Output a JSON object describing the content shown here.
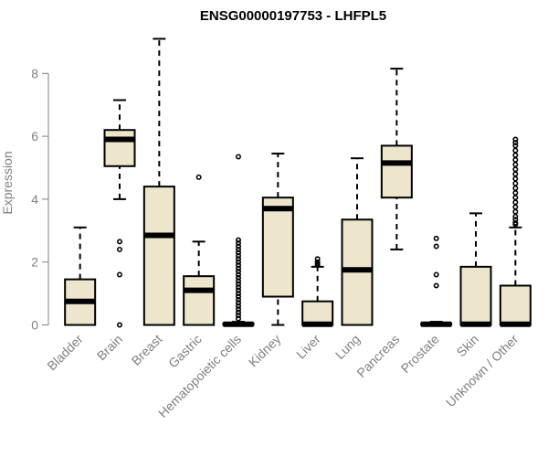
{
  "chart_data": {
    "type": "boxplot",
    "title": "ENSG00000197753 - LHFPL5",
    "xlabel": "",
    "ylabel": "Expression",
    "ylim": [
      0,
      9.2
    ],
    "yticks": [
      0,
      2,
      4,
      6,
      8
    ],
    "box_fill": "#ede5cc",
    "categories": [
      "Bladder",
      "Brain",
      "Breast",
      "Gastric",
      "Hematopoietic cells",
      "Kidney",
      "Liver",
      "Lung",
      "Pancreas",
      "Prostate",
      "Skin",
      "Unknown / Other"
    ],
    "boxes": [
      {
        "category": "Bladder",
        "whisker_low": 0,
        "q1": 0,
        "median": 0.75,
        "q3": 1.45,
        "whisker_high": 3.1,
        "outliers": []
      },
      {
        "category": "Brain",
        "whisker_low": 4.0,
        "q1": 5.05,
        "median": 5.9,
        "q3": 6.2,
        "whisker_high": 7.15,
        "outliers": [
          2.65,
          2.4,
          1.6,
          0.0
        ]
      },
      {
        "category": "Breast",
        "whisker_low": 0,
        "q1": 0,
        "median": 2.85,
        "q3": 4.4,
        "whisker_high": 9.1,
        "outliers": []
      },
      {
        "category": "Gastric",
        "whisker_low": 0,
        "q1": 0,
        "median": 1.1,
        "q3": 1.55,
        "whisker_high": 2.65,
        "outliers": [
          4.7
        ]
      },
      {
        "category": "Hematopoietic cells",
        "whisker_low": 0,
        "q1": 0,
        "median": 0.02,
        "q3": 0.05,
        "whisker_high": 0.1,
        "outliers": [
          5.35,
          2.7,
          2.6,
          2.5,
          2.4,
          2.3,
          2.2,
          2.1,
          2.0,
          1.9,
          1.8,
          1.7,
          1.6,
          1.5,
          1.4,
          1.3,
          1.2,
          1.1,
          1.0,
          0.9,
          0.8,
          0.7,
          0.6,
          0.5,
          0.4,
          0.3,
          0.2
        ]
      },
      {
        "category": "Kidney",
        "whisker_low": 0,
        "q1": 0.9,
        "median": 3.7,
        "q3": 4.05,
        "whisker_high": 5.45,
        "outliers": []
      },
      {
        "category": "Liver",
        "whisker_low": 0,
        "q1": 0,
        "median": 0.02,
        "q3": 0.75,
        "whisker_high": 1.85,
        "outliers": [
          2.1,
          2.0,
          1.95,
          1.9
        ]
      },
      {
        "category": "Lung",
        "whisker_low": 0,
        "q1": 0,
        "median": 1.75,
        "q3": 3.35,
        "whisker_high": 5.3,
        "outliers": []
      },
      {
        "category": "Pancreas",
        "whisker_low": 2.4,
        "q1": 4.05,
        "median": 5.15,
        "q3": 5.7,
        "whisker_high": 8.15,
        "outliers": []
      },
      {
        "category": "Prostate",
        "whisker_low": 0,
        "q1": 0,
        "median": 0.02,
        "q3": 0.05,
        "whisker_high": 0.1,
        "outliers": [
          2.75,
          2.5,
          1.6,
          1.25
        ]
      },
      {
        "category": "Skin",
        "whisker_low": 0,
        "q1": 0,
        "median": 0.02,
        "q3": 1.85,
        "whisker_high": 3.55,
        "outliers": []
      },
      {
        "category": "Unknown / Other",
        "whisker_low": 0,
        "q1": 0,
        "median": 0.02,
        "q3": 1.25,
        "whisker_high": 3.1,
        "outliers": [
          5.9,
          5.8,
          5.7,
          5.55,
          5.4,
          5.25,
          5.1,
          4.95,
          4.8,
          4.65,
          4.5,
          4.35,
          4.2,
          4.05,
          3.9,
          3.75,
          3.6,
          3.45,
          3.35,
          3.25,
          3.2
        ]
      }
    ]
  }
}
